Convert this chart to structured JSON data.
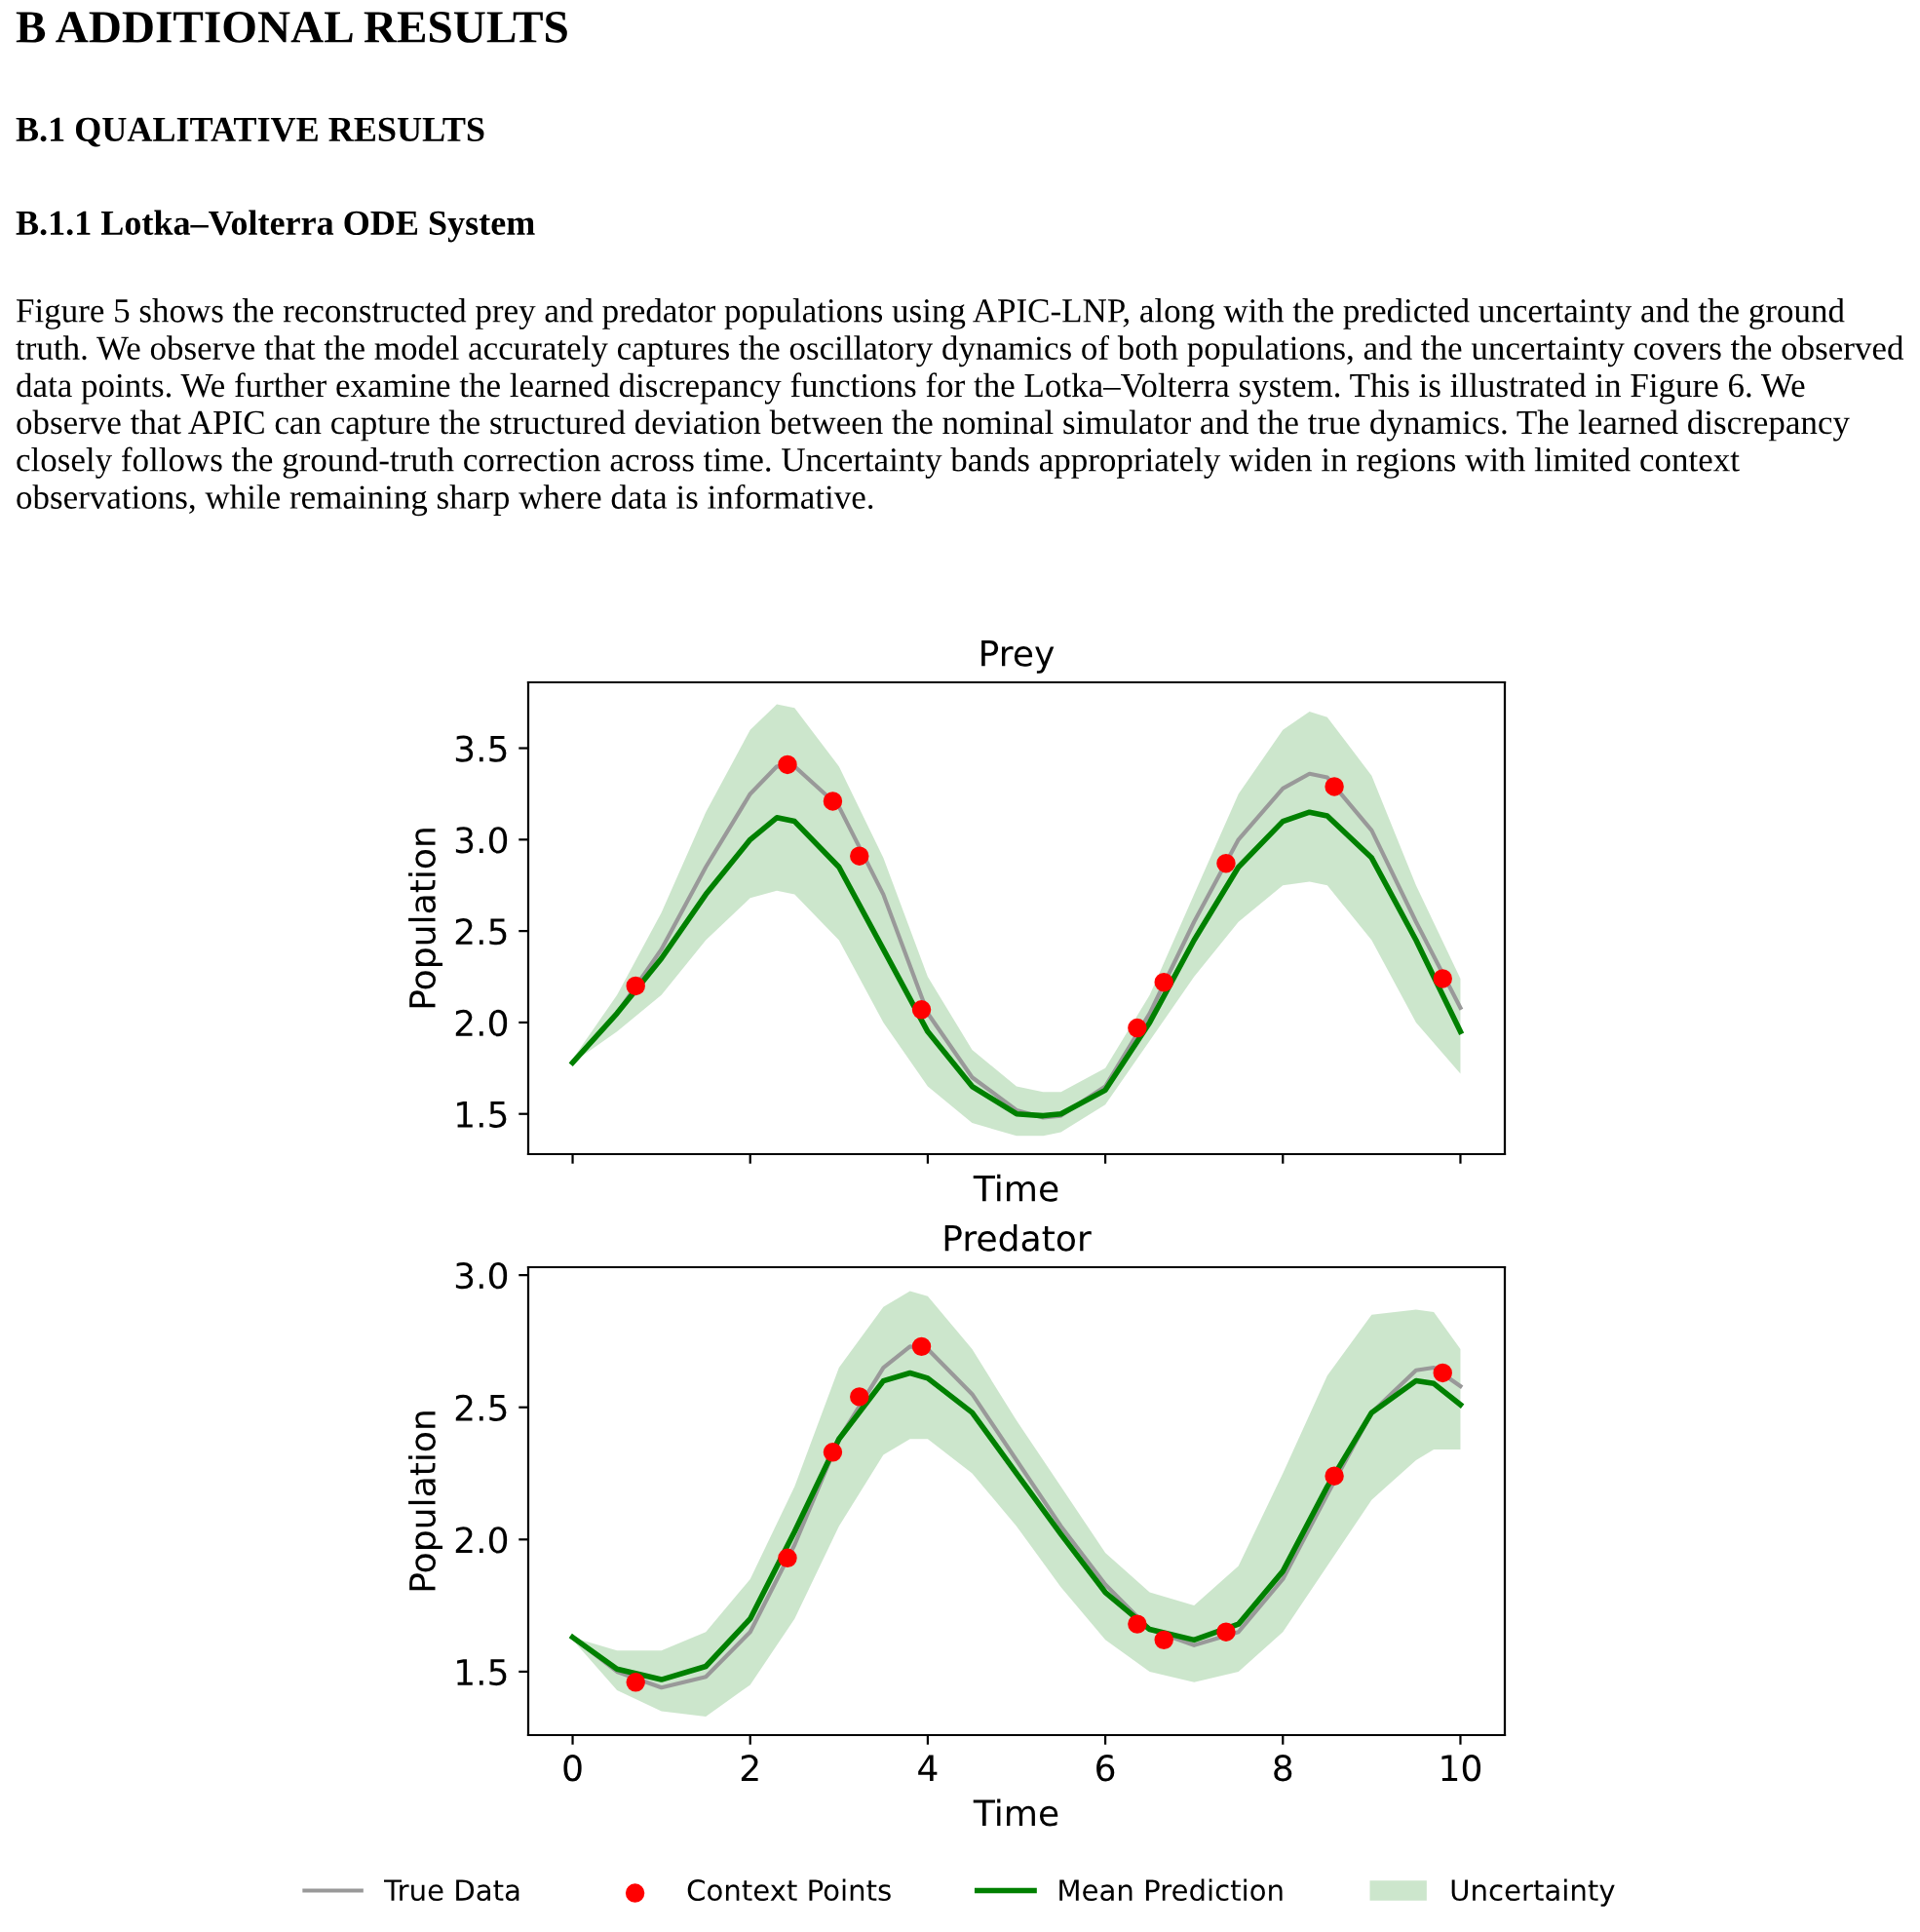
{
  "chart_data": [
    {
      "type": "other",
      "title": "B ADDITIONAL RESULTS",
      "annotations": [
        "B.1 QUALITATIVE RESULTS",
        "B.1.1 Lotka–Volterra ODE System",
        "Figure 5 shows the reconstructed prey and predator populations using APIC-LNP, along with the predicted uncertainty and the ground truth. We observe that the model accurately captures the oscillatory dynamics of both populations, and the uncertainty covers the observed data points. We further examine the learned discrepancy functions for the Lotka–Volterra system. This is illustrated in Figure 6. We observe that APIC can capture the structured deviation between the nominal simulator and the true dynamics. The learned discrepancy closely follows the ground-truth correction across time. Uncertainty bands appropriately widen in regions with limited context observations, while remaining sharp where data is informative."
      ]
    },
    {
      "type": "line",
      "title": "Prey",
      "xlabel": "Time",
      "ylabel": "Population",
      "xlim": [
        -0.5,
        10.5
      ],
      "xticks": [
        0,
        2,
        4,
        6,
        8,
        10
      ],
      "ylim": [
        1.28,
        3.86
      ],
      "yticks": [
        {
          "value": 1.5,
          "label": "1.5"
        },
        {
          "value": 2.0,
          "label": "2.0"
        },
        {
          "value": 2.5,
          "label": "2.5"
        },
        {
          "value": 3.0,
          "label": "3.0"
        },
        {
          "value": 3.5,
          "label": "3.5"
        }
      ],
      "tick_labels": "y",
      "grid": false,
      "x": [
        0,
        0.5,
        1,
        1.5,
        2,
        2.3,
        2.5,
        3,
        3.5,
        4,
        4.5,
        5,
        5.3,
        5.5,
        6,
        6.5,
        7,
        7.5,
        8,
        8.3,
        8.5,
        9,
        9.5,
        10
      ],
      "series": [
        {
          "type": "line",
          "color": "#999999",
          "values": [
            1.78,
            2.05,
            2.4,
            2.85,
            3.25,
            3.4,
            3.4,
            3.18,
            2.7,
            2.05,
            1.7,
            1.52,
            1.48,
            1.49,
            1.65,
            2.05,
            2.55,
            3.0,
            3.28,
            3.36,
            3.34,
            3.05,
            2.55,
            2.08
          ]
        },
        {
          "type": "scatter",
          "marker": "circle",
          "color": "#ff0000",
          "x": [
            0.71,
            2.42,
            2.93,
            3.23,
            3.93,
            6.36,
            6.66,
            7.36,
            8.58,
            9.8
          ],
          "values": [
            2.2,
            3.41,
            3.21,
            2.91,
            2.07,
            1.97,
            2.22,
            2.87,
            3.29,
            2.24
          ]
        },
        {
          "type": "line",
          "color": "#008000",
          "values": [
            1.78,
            2.05,
            2.35,
            2.7,
            3.0,
            3.12,
            3.1,
            2.85,
            2.4,
            1.95,
            1.65,
            1.5,
            1.49,
            1.5,
            1.63,
            2.0,
            2.45,
            2.85,
            3.1,
            3.15,
            3.13,
            2.9,
            2.45,
            1.95
          ],
          "lower": [
            1.78,
            1.95,
            2.15,
            2.45,
            2.68,
            2.72,
            2.7,
            2.45,
            2.0,
            1.65,
            1.45,
            1.38,
            1.38,
            1.4,
            1.55,
            1.9,
            2.25,
            2.55,
            2.75,
            2.77,
            2.75,
            2.45,
            2.0,
            1.72
          ],
          "upper": [
            1.8,
            2.15,
            2.6,
            3.15,
            3.6,
            3.74,
            3.72,
            3.4,
            2.9,
            2.25,
            1.85,
            1.65,
            1.62,
            1.62,
            1.75,
            2.15,
            2.7,
            3.25,
            3.6,
            3.7,
            3.67,
            3.35,
            2.75,
            2.24
          ]
        }
      ]
    },
    {
      "type": "line",
      "title": "Predator",
      "xlabel": "Time",
      "ylabel": "Population",
      "xlim": [
        -0.5,
        10.5
      ],
      "xticks": [
        0,
        2,
        4,
        6,
        8,
        10
      ],
      "ylim": [
        1.26,
        3.03
      ],
      "yticks": [
        {
          "value": 1.5,
          "label": "1.5"
        },
        {
          "value": 2.0,
          "label": "2.0"
        },
        {
          "value": 2.5,
          "label": "2.5"
        },
        {
          "value": 3.0,
          "label": "3.0"
        }
      ],
      "grid": false,
      "legend": "bottom",
      "annotations": [
        "Uncertainty"
      ],
      "x": [
        0,
        0.5,
        1,
        1.5,
        2,
        2.5,
        3,
        3.5,
        3.8,
        4,
        4.5,
        5,
        5.5,
        6,
        6.5,
        7,
        7.5,
        8,
        8.5,
        9,
        9.5,
        9.7,
        10
      ],
      "series": [
        {
          "name": "True Data",
          "type": "line",
          "color": "#999999",
          "values": [
            1.63,
            1.5,
            1.44,
            1.48,
            1.65,
            1.98,
            2.38,
            2.65,
            2.73,
            2.72,
            2.55,
            2.3,
            2.05,
            1.83,
            1.66,
            1.6,
            1.65,
            1.85,
            2.17,
            2.48,
            2.64,
            2.65,
            2.58
          ]
        },
        {
          "name": "Context Points",
          "type": "scatter",
          "marker": "circle",
          "color": "#ff0000",
          "x": [
            0.71,
            2.42,
            2.93,
            3.23,
            3.93,
            6.36,
            6.66,
            7.36,
            8.58,
            9.8
          ],
          "values": [
            1.46,
            1.93,
            2.33,
            2.54,
            2.73,
            1.68,
            1.62,
            1.65,
            2.24,
            2.63
          ]
        },
        {
          "name": "Mean Prediction",
          "type": "line",
          "color": "#008000",
          "values": [
            1.63,
            1.51,
            1.47,
            1.52,
            1.7,
            2.03,
            2.38,
            2.6,
            2.63,
            2.61,
            2.48,
            2.25,
            2.02,
            1.8,
            1.66,
            1.62,
            1.68,
            1.88,
            2.2,
            2.48,
            2.6,
            2.59,
            2.51
          ],
          "lower": [
            1.62,
            1.43,
            1.35,
            1.33,
            1.45,
            1.7,
            2.05,
            2.32,
            2.38,
            2.38,
            2.25,
            2.05,
            1.82,
            1.62,
            1.5,
            1.46,
            1.5,
            1.65,
            1.9,
            2.15,
            2.3,
            2.34,
            2.34
          ],
          "upper": [
            1.63,
            1.58,
            1.58,
            1.65,
            1.85,
            2.2,
            2.65,
            2.88,
            2.94,
            2.92,
            2.72,
            2.45,
            2.2,
            1.95,
            1.8,
            1.75,
            1.9,
            2.25,
            2.62,
            2.85,
            2.87,
            2.86,
            2.72
          ]
        }
      ]
    }
  ]
}
